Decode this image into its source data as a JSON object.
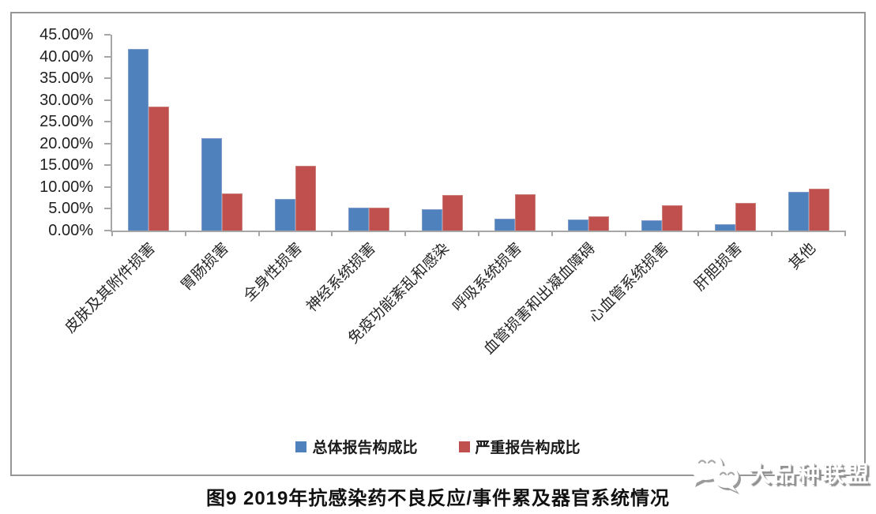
{
  "chart_data": {
    "type": "bar",
    "categories": [
      "皮肤及其附件损害",
      "胃肠损害",
      "全身性损害",
      "神经系统损害",
      "免疫功能紊乱和感染",
      "呼吸系统损害",
      "血管损害和出凝血障碍",
      "心血管系统损害",
      "肝胆损害",
      "其他"
    ],
    "series": [
      {
        "name": "总体报告构成比",
        "color": "#4F81BD",
        "border_color": "#7e9cc9",
        "values": [
          41.7,
          21.3,
          7.3,
          5.3,
          4.9,
          2.7,
          2.6,
          2.4,
          1.5,
          8.9
        ]
      },
      {
        "name": "严重报告构成比",
        "color": "#C0504D",
        "border_color": "#cd7f7c",
        "values": [
          28.5,
          8.5,
          14.8,
          5.3,
          8.1,
          8.4,
          3.2,
          5.9,
          6.4,
          9.7
        ]
      }
    ],
    "y_axis": {
      "min": 0,
      "max": 45,
      "step": 5,
      "unit": "%",
      "tick_labels": [
        "0.00%",
        "5.00%",
        "10.00%",
        "15.00%",
        "20.00%",
        "25.00%",
        "30.00%",
        "35.00%",
        "40.00%",
        "45.00%"
      ]
    },
    "grid": false,
    "legend_position": "bottom",
    "title": "图9 2019年抗感染药不良反应/事件累及器官系统情况"
  },
  "caption": "图9 2019年抗感染药不良反应/事件累及器官系统情况",
  "watermark": {
    "text": "大品种联盟",
    "icon": "wechat-icon"
  },
  "style": {
    "axis_color": "#a6a6a6",
    "frame_border_color": "#969696",
    "label_color": "#262626"
  }
}
